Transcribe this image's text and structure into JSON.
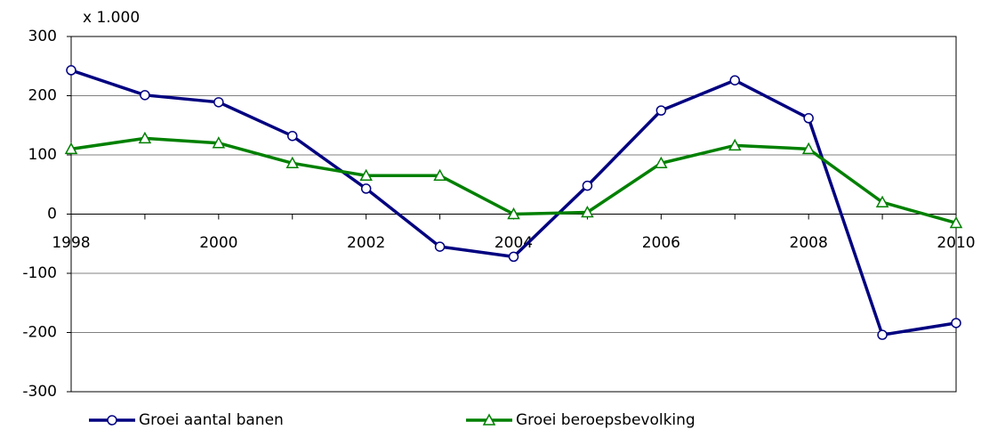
{
  "chart_data": {
    "type": "line",
    "unit_label": "x 1.000",
    "x": [
      1998,
      1999,
      2000,
      2001,
      2002,
      2003,
      2004,
      2005,
      2006,
      2007,
      2008,
      2009,
      2010
    ],
    "series": [
      {
        "name": "Groei aantal banen",
        "color": "#000080",
        "marker": "circle",
        "values": [
          243,
          201,
          189,
          132,
          43,
          -55,
          -72,
          48,
          175,
          226,
          162,
          -204,
          -184
        ]
      },
      {
        "name": "Groei beroepsbevolking",
        "color": "#008000",
        "marker": "triangle",
        "values": [
          110,
          128,
          120,
          86,
          65,
          65,
          0,
          3,
          86,
          116,
          110,
          20,
          -15
        ]
      }
    ],
    "xlim": [
      1998,
      2010
    ],
    "xticks": [
      1998,
      2000,
      2002,
      2004,
      2006,
      2008,
      2010
    ],
    "ylim": [
      -300,
      300
    ],
    "yticks": [
      -300,
      -200,
      -100,
      0,
      100,
      200,
      300
    ],
    "grid": true,
    "legend": "bottom"
  }
}
